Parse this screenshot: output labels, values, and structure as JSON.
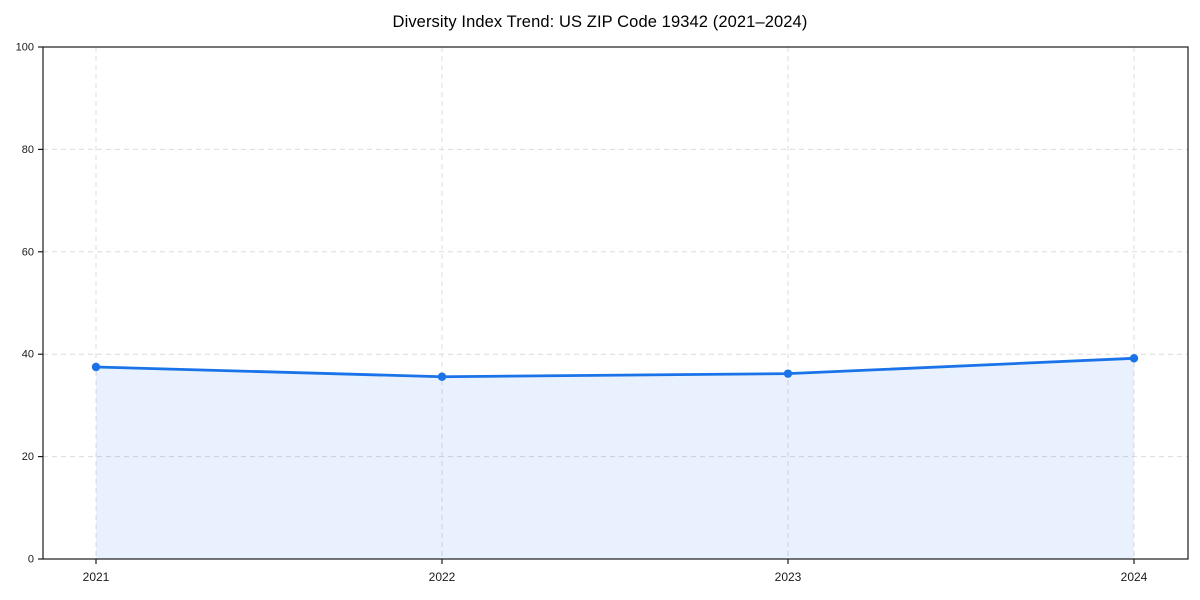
{
  "chart_data": {
    "type": "line",
    "title": "Diversity Index Trend: US ZIP Code 19342 (2021–2024)",
    "x": [
      "2021",
      "2022",
      "2023",
      "2024"
    ],
    "series": [
      {
        "name": "Diversity Index",
        "values": [
          37.5,
          35.6,
          36.2,
          39.2
        ]
      }
    ],
    "xlabel": "",
    "ylabel": "",
    "ylim": [
      0,
      100
    ],
    "yticks": [
      0,
      20,
      40,
      60,
      80,
      100
    ],
    "grid": "dashed, horizontal and vertical",
    "legend": "none",
    "area_fill_to_zero": true,
    "marker": "circle",
    "colors": {
      "line": "#1a73e8",
      "marker": "#1a73e8",
      "area": "rgba(26,115,232,0.10)",
      "grid": "#dcdcdc",
      "spine": "#1a1a1a",
      "tick_label": "#1a1a1a",
      "title": "#000000",
      "background": "#ffffff"
    }
  }
}
